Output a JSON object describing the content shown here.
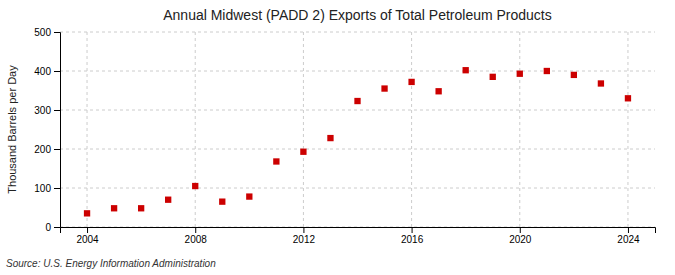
{
  "chart_data": {
    "type": "scatter",
    "title": "Annual Midwest (PADD 2) Exports of Total Petroleum Products",
    "ylabel": "Thousand Barrels per Day",
    "annotations": [
      "Source: U.S. Energy Information Administration"
    ],
    "x": [
      2004,
      2005,
      2006,
      2007,
      2008,
      2009,
      2010,
      2011,
      2012,
      2013,
      2014,
      2015,
      2016,
      2017,
      2018,
      2019,
      2020,
      2021,
      2022,
      2023,
      2024
    ],
    "values": [
      35,
      48,
      48,
      70,
      105,
      65,
      78,
      168,
      193,
      228,
      323,
      355,
      372,
      348,
      402,
      385,
      393,
      400,
      390,
      368,
      330
    ],
    "color": "#cc0000",
    "marker": "square",
    "xlim": [
      2003,
      2025
    ],
    "xticks": [
      2004,
      2008,
      2012,
      2016,
      2020,
      2024
    ],
    "ylim": [
      0,
      500
    ],
    "yticks": [
      0,
      100,
      200,
      300,
      400,
      500
    ],
    "grid": true
  }
}
